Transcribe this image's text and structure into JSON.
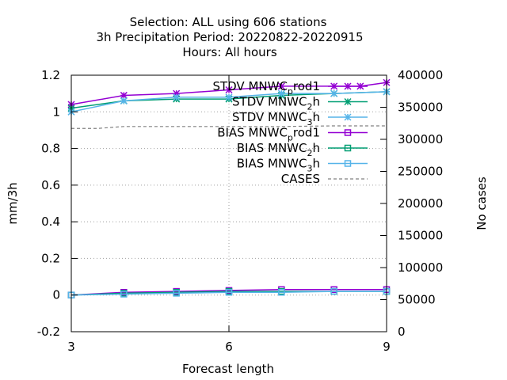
{
  "chart_data": {
    "type": "line",
    "title_lines": [
      "Selection: ALL using   606 stations",
      "3h Precipitation   Period: 20220822-20220915",
      "Hours:  All hours"
    ],
    "xlabel": "Forecast length",
    "ylabel": "mm/3h",
    "y2label": "No cases",
    "x_ticks": [
      "3",
      "6",
      "9"
    ],
    "y_ticks": [
      "-0.2",
      "0",
      "0.2",
      "0.4",
      "0.6",
      "0.8",
      "1",
      "1.2"
    ],
    "y2_ticks": [
      "0",
      "50000",
      "100000",
      "150000",
      "200000",
      "250000",
      "300000",
      "350000",
      "400000"
    ],
    "xlim": [
      3,
      9
    ],
    "ylim": [
      -0.2,
      1.2
    ],
    "y2lim": [
      0,
      400000
    ],
    "grid": true,
    "legend_position": "top-right",
    "legend": [
      {
        "main": "STDV MNWC",
        "sub": "p",
        "tail": "rod1"
      },
      {
        "main": "STDV MNWC",
        "sub": "2",
        "tail": "h"
      },
      {
        "main": "STDV MNWC",
        "sub": "3",
        "tail": "h"
      },
      {
        "main": "BIAS MNWC",
        "sub": "p",
        "tail": "rod1"
      },
      {
        "main": "BIAS MNWC",
        "sub": "2",
        "tail": "h"
      },
      {
        "main": "BIAS MNWC",
        "sub": "3",
        "tail": "h"
      },
      {
        "main": "CASES",
        "sub": "",
        "tail": ""
      }
    ],
    "series": [
      {
        "color": "#9400d3",
        "marker": "star",
        "axis": "y",
        "dash": false,
        "x": [
          3,
          4,
          5,
          6,
          7,
          8,
          8.5,
          9
        ],
        "y": [
          1.04,
          1.09,
          1.1,
          1.12,
          1.14,
          1.14,
          1.14,
          1.16
        ]
      },
      {
        "color": "#009e73",
        "marker": "star",
        "axis": "y",
        "dash": false,
        "x": [
          3,
          4,
          5,
          6,
          7,
          8,
          9
        ],
        "y": [
          1.02,
          1.06,
          1.07,
          1.07,
          1.09,
          1.1,
          1.11
        ]
      },
      {
        "color": "#56b4e9",
        "marker": "star",
        "axis": "y",
        "dash": false,
        "x": [
          3,
          4,
          5,
          6,
          7,
          8,
          9
        ],
        "y": [
          1.0,
          1.06,
          1.08,
          1.08,
          1.1,
          1.1,
          1.11
        ]
      },
      {
        "color": "#9400d3",
        "marker": "square",
        "axis": "y",
        "dash": false,
        "x": [
          3,
          4,
          5,
          6,
          7,
          8,
          9
        ],
        "y": [
          0.0,
          0.015,
          0.02,
          0.025,
          0.03,
          0.03,
          0.03
        ]
      },
      {
        "color": "#009e73",
        "marker": "square",
        "axis": "y",
        "dash": false,
        "x": [
          3,
          4,
          5,
          6,
          7,
          8,
          9
        ],
        "y": [
          0.0,
          0.01,
          0.015,
          0.02,
          0.02,
          0.02,
          0.02
        ]
      },
      {
        "color": "#56b4e9",
        "marker": "square",
        "axis": "y",
        "dash": false,
        "x": [
          3,
          4,
          5,
          6,
          7,
          8,
          9
        ],
        "y": [
          0.0,
          0.005,
          0.01,
          0.015,
          0.015,
          0.02,
          0.02
        ]
      },
      {
        "color": "#808080",
        "marker": "none",
        "axis": "y2",
        "dash": true,
        "x": [
          3,
          3.5,
          4,
          5,
          6,
          7,
          8,
          9
        ],
        "y": [
          317000,
          317000,
          320000,
          320000,
          320000,
          320000,
          321000,
          321000
        ]
      }
    ]
  }
}
